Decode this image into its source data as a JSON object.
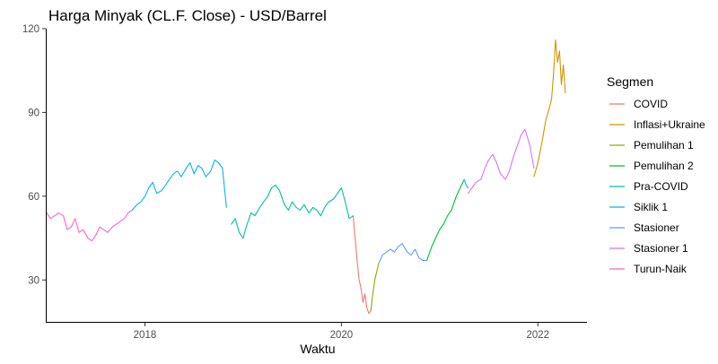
{
  "chart_data": {
    "type": "line",
    "title": "Harga Minyak (CL.F. Close) - USD/Barrel",
    "xlabel": "Waktu",
    "ylabel": "",
    "x_ticks": [
      "2018",
      "2020",
      "2022"
    ],
    "y_ticks": [
      "30",
      "60",
      "90",
      "120"
    ],
    "xlim": [
      2017.0,
      2022.5
    ],
    "ylim": [
      15,
      120
    ],
    "grid": false,
    "legend": {
      "title": "Segmen",
      "placement": "right",
      "entries": [
        {
          "name": "COVID",
          "color": "#F8766D"
        },
        {
          "name": "Inflasi+Ukraine",
          "color": "#D39200"
        },
        {
          "name": "Pemulihan 1",
          "color": "#93AA00"
        },
        {
          "name": "Pemulihan 2",
          "color": "#00BA38"
        },
        {
          "name": "Pra-COVID",
          "color": "#00C19F"
        },
        {
          "name": "Siklik 1",
          "color": "#00B9E3"
        },
        {
          "name": "Stasioner",
          "color": "#619CFF"
        },
        {
          "name": "Stasioner 1",
          "color": "#DB72FB"
        },
        {
          "name": "Turun-Naik",
          "color": "#FF61C3"
        }
      ]
    },
    "series": [
      {
        "name": "Turun-Naik",
        "color": "#FF61C3",
        "x": [
          2017.0,
          2017.04,
          2017.08,
          2017.12,
          2017.17,
          2017.21,
          2017.25,
          2017.29,
          2017.33,
          2017.37,
          2017.42,
          2017.46,
          2017.5,
          2017.54,
          2017.58,
          2017.62,
          2017.67,
          2017.71,
          2017.75,
          2017.79,
          2017.83,
          2017.87
        ],
        "y": [
          54,
          52,
          53,
          54,
          53,
          48,
          49,
          52,
          47,
          48,
          45,
          44,
          46,
          49,
          48,
          47,
          49,
          50,
          51,
          52,
          54,
          55
        ]
      },
      {
        "name": "Siklik 1",
        "color": "#00B9E3",
        "x": [
          2017.87,
          2017.92,
          2017.96,
          2018.0,
          2018.04,
          2018.08,
          2018.12,
          2018.17,
          2018.21,
          2018.25,
          2018.29,
          2018.33,
          2018.37,
          2018.42,
          2018.46,
          2018.5,
          2018.54,
          2018.58,
          2018.62,
          2018.67,
          2018.71,
          2018.75,
          2018.79,
          2018.83
        ],
        "y": [
          55,
          57,
          58,
          60,
          63,
          65,
          61,
          62,
          64,
          66,
          68,
          69,
          67,
          70,
          72,
          68,
          71,
          70,
          67,
          69,
          73,
          72,
          70,
          56
        ]
      },
      {
        "name": "Pra-COVID",
        "color": "#00C19F",
        "x": [
          2018.88,
          2018.92,
          2018.96,
          2019.0,
          2019.04,
          2019.08,
          2019.12,
          2019.17,
          2019.21,
          2019.25,
          2019.29,
          2019.33,
          2019.37,
          2019.42,
          2019.46,
          2019.5,
          2019.54,
          2019.58,
          2019.62,
          2019.67,
          2019.71,
          2019.75,
          2019.79,
          2019.83,
          2019.87,
          2019.92,
          2019.96,
          2020.0,
          2020.04,
          2020.08,
          2020.12
        ],
        "y": [
          50,
          52,
          47,
          45,
          50,
          54,
          53,
          56,
          58,
          60,
          63,
          64,
          62,
          57,
          55,
          58,
          56,
          55,
          57,
          54,
          56,
          55,
          53,
          56,
          58,
          59,
          61,
          63,
          58,
          52,
          53
        ]
      },
      {
        "name": "COVID",
        "color": "#F8766D",
        "x": [
          2020.12,
          2020.14,
          2020.16,
          2020.18,
          2020.2,
          2020.22,
          2020.24,
          2020.26,
          2020.28,
          2020.3
        ],
        "y": [
          53,
          45,
          37,
          30,
          27,
          22,
          25,
          20,
          18,
          19
        ]
      },
      {
        "name": "Pemulihan 1",
        "color": "#93AA00",
        "x": [
          2020.3,
          2020.32,
          2020.34,
          2020.36,
          2020.38
        ],
        "y": [
          19,
          25,
          30,
          33,
          36
        ]
      },
      {
        "name": "Stasioner",
        "color": "#619CFF",
        "x": [
          2020.38,
          2020.42,
          2020.46,
          2020.5,
          2020.54,
          2020.58,
          2020.62,
          2020.67,
          2020.71,
          2020.75,
          2020.79,
          2020.83,
          2020.87
        ],
        "y": [
          36,
          39,
          40,
          41,
          40,
          42,
          43,
          40,
          39,
          41,
          38,
          37,
          37
        ]
      },
      {
        "name": "Pemulihan 2",
        "color": "#00BA38",
        "x": [
          2020.87,
          2020.92,
          2020.96,
          2021.0,
          2021.04,
          2021.08,
          2021.12,
          2021.17,
          2021.21,
          2021.25
        ],
        "y": [
          37,
          42,
          45,
          48,
          50,
          53,
          55,
          60,
          63,
          66
        ]
      },
      {
        "name": "Siklik 1",
        "color": "#00B9E3",
        "x": [
          2021.25,
          2021.27,
          2021.29
        ],
        "y": [
          66,
          64,
          63
        ]
      },
      {
        "name": "Stasioner 1",
        "color": "#DB72FB",
        "x": [
          2021.29,
          2021.33,
          2021.37,
          2021.42,
          2021.46,
          2021.5,
          2021.54,
          2021.58,
          2021.62,
          2021.67,
          2021.71,
          2021.75,
          2021.79,
          2021.83,
          2021.87,
          2021.92,
          2021.96
        ],
        "y": [
          61,
          63,
          65,
          66,
          70,
          73,
          75,
          72,
          68,
          66,
          69,
          74,
          78,
          82,
          84,
          78,
          70
        ]
      },
      {
        "name": "Inflasi+Ukraine",
        "color": "#D39200",
        "x": [
          2021.96,
          2022.0,
          2022.04,
          2022.08,
          2022.12,
          2022.14,
          2022.16,
          2022.18,
          2022.2,
          2022.22,
          2022.24,
          2022.26,
          2022.28
        ],
        "y": [
          67,
          72,
          79,
          87,
          92,
          95,
          104,
          116,
          108,
          112,
          100,
          107,
          97
        ]
      }
    ]
  }
}
